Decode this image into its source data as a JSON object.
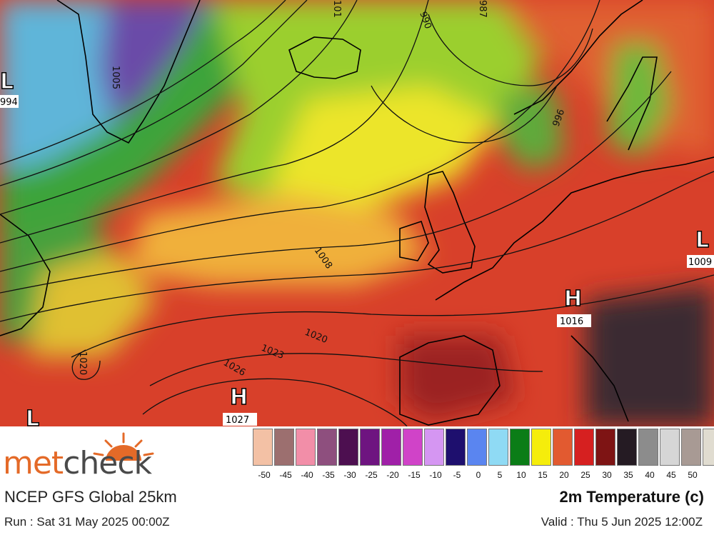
{
  "map": {
    "isobar_labels": [
      "1005",
      "1008",
      "1020",
      "1023",
      "1026",
      "1020",
      "990",
      "996",
      "987",
      "101"
    ],
    "pressure_centers": [
      {
        "type": "L",
        "value": "994"
      },
      {
        "type": "L",
        "value": "1009"
      },
      {
        "type": "H",
        "value": "1016"
      },
      {
        "type": "H",
        "value": "1027"
      },
      {
        "type": "L",
        "value": ""
      }
    ]
  },
  "legend": {
    "title": "2m Temperature (c)",
    "ticks": [
      "-50",
      "-45",
      "-40",
      "-35",
      "-30",
      "-25",
      "-20",
      "-15",
      "-10",
      "-5",
      "0",
      "5",
      "10",
      "15",
      "20",
      "25",
      "30",
      "35",
      "40",
      "45",
      "50"
    ],
    "colors": [
      "#f3c1a5",
      "#9c6f6f",
      "#f28ea8",
      "#8e4f7e",
      "#4d0f50",
      "#6e1480",
      "#a020a8",
      "#d043c8",
      "#d596f2",
      "#1e0f6e",
      "#5a85f0",
      "#8fdaf4",
      "#0b7d17",
      "#f5ed0b",
      "#e25a30",
      "#d62020",
      "#7e1414",
      "#251b23",
      "#8c8c8c",
      "#d6d6d6",
      "#a89a94",
      "#e0dcd0"
    ]
  },
  "footer": {
    "brand_part1": "met",
    "brand_part2": "check",
    "model": "NCEP GFS Global 25km",
    "run": "Run : Sat 31 May 2025 00:00Z",
    "parameter": "2m Temperature (c)",
    "valid": "Valid : Thu 5 Jun 2025 12:00Z"
  }
}
